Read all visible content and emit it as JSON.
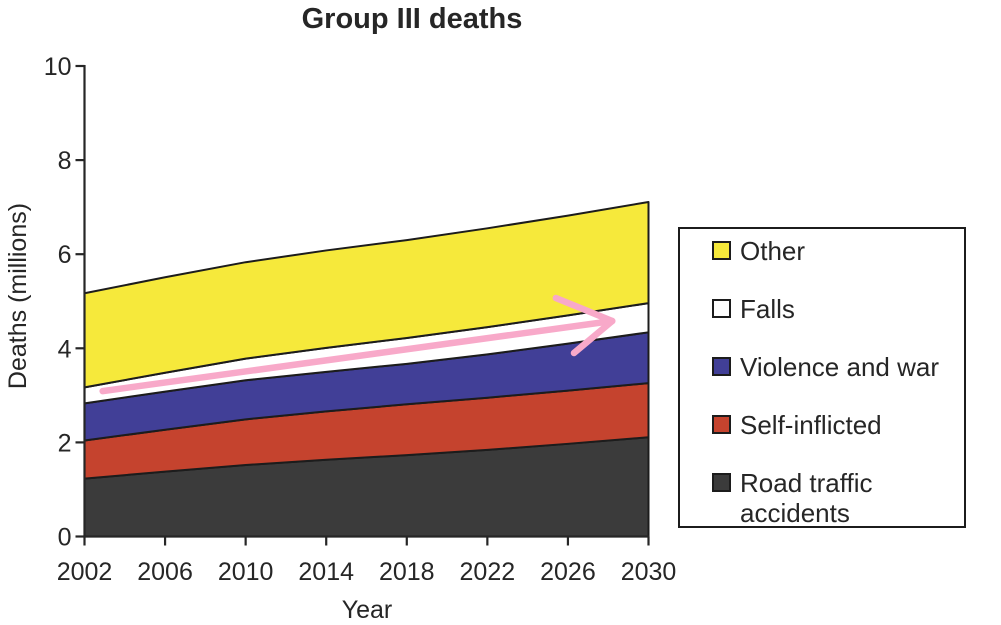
{
  "chart": {
    "title": "Group III deaths",
    "ylabel": "Deaths (millions)",
    "xlabel": "Year"
  },
  "chart_data": {
    "type": "area",
    "stacked": true,
    "title": "Group III deaths",
    "xlabel": "Year",
    "ylabel": "Deaths (millions)",
    "xlim": [
      2002,
      2030
    ],
    "ylim": [
      0,
      10
    ],
    "xticks": [
      2002,
      2006,
      2010,
      2014,
      2018,
      2022,
      2026,
      2030
    ],
    "yticks": [
      0,
      2,
      4,
      6,
      8,
      10
    ],
    "grid": false,
    "x": [
      2002,
      2006,
      2010,
      2014,
      2018,
      2022,
      2026,
      2030
    ],
    "series": [
      {
        "name": "Road traffic accidents",
        "color": "#3B3B3B",
        "values": [
          1.23,
          1.38,
          1.52,
          1.63,
          1.73,
          1.84,
          1.97,
          2.11
        ]
      },
      {
        "name": "Self-inflicted",
        "color": "#C5432E",
        "values": [
          0.81,
          0.89,
          0.97,
          1.03,
          1.08,
          1.11,
          1.13,
          1.15
        ]
      },
      {
        "name": "Violence and war",
        "color": "#413F97",
        "values": [
          0.79,
          0.81,
          0.83,
          0.84,
          0.86,
          0.92,
          1.0,
          1.08
        ]
      },
      {
        "name": "Falls",
        "color": "#FFFFFF",
        "values": [
          0.34,
          0.4,
          0.46,
          0.51,
          0.55,
          0.58,
          0.6,
          0.62
        ]
      },
      {
        "name": "Other",
        "color": "#F6E93B",
        "values": [
          2.0,
          2.03,
          2.05,
          2.07,
          2.08,
          2.1,
          2.12,
          2.15
        ]
      }
    ],
    "legend": {
      "position": "right",
      "order": [
        "Other",
        "Falls",
        "Violence and war",
        "Self-inflicted",
        "Road traffic accidents"
      ]
    },
    "annotation": {
      "type": "trend-arrow",
      "color": "#F8A9C9",
      "from": [
        2002.9,
        3.09
      ],
      "to": [
        2028.2,
        4.58
      ],
      "barb_upper": [
        2025.4,
        5.07
      ],
      "barb_lower": [
        2026.3,
        3.9
      ]
    },
    "outline_color": "#1C1C1C",
    "axis_color": "#262626",
    "background": "#FFFFFF"
  }
}
